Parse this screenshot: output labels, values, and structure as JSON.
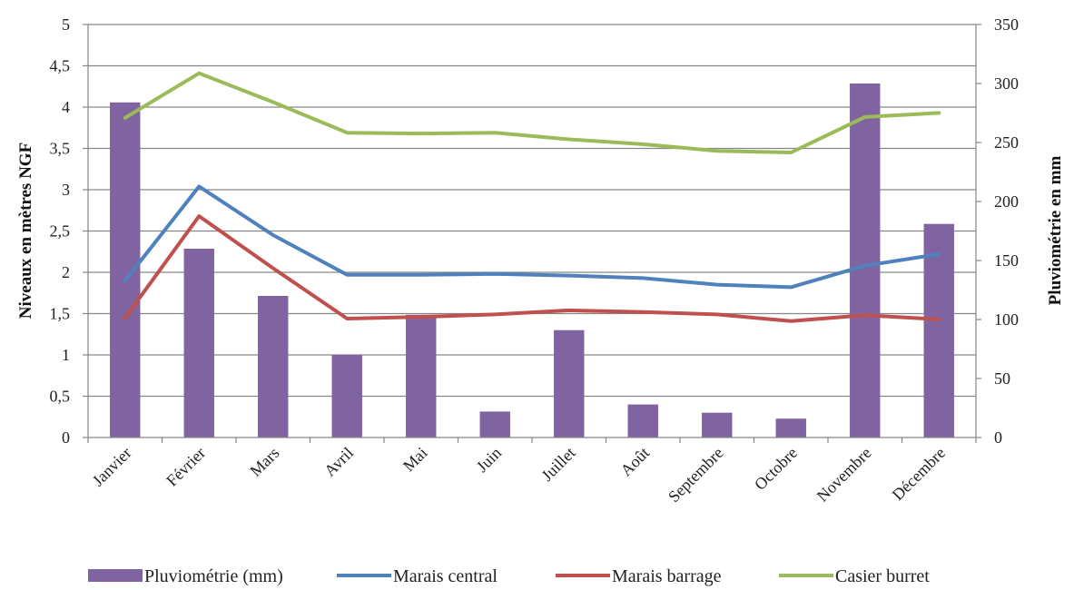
{
  "chart_data": {
    "type": "bar+line",
    "categories": [
      "Janvier",
      "Février",
      "Mars",
      "Avril",
      "Mai",
      "Juin",
      "Juillet",
      "Août",
      "Septembre",
      "Octobre",
      "Novembre",
      "Décembre"
    ],
    "y_left": {
      "label": "Niveaux en mètres NGF",
      "range": [
        0,
        5
      ],
      "ticks": [
        "0",
        "0,5",
        "1",
        "1,5",
        "2",
        "2,5",
        "3",
        "3,5",
        "4",
        "4,5",
        "5"
      ]
    },
    "y_right": {
      "label": "Pluviométrie en mm",
      "range": [
        0,
        350
      ],
      "ticks": [
        "0",
        "50",
        "100",
        "150",
        "200",
        "250",
        "300",
        "350"
      ]
    },
    "grid": true,
    "legend_position": "bottom",
    "series": [
      {
        "name": "Pluviométrie (mm)",
        "kind": "bar",
        "axis": "right",
        "color": "#8064A2",
        "values": [
          284,
          160,
          120,
          70,
          104,
          22,
          91,
          28,
          21,
          16,
          300,
          181
        ]
      },
      {
        "name": "Marais central",
        "kind": "line",
        "axis": "left",
        "color": "#4F81BD",
        "values": [
          1.9,
          3.04,
          2.45,
          1.97,
          1.97,
          1.98,
          1.96,
          1.93,
          1.85,
          1.82,
          2.08,
          2.22
        ]
      },
      {
        "name": "Marais barrage",
        "kind": "line",
        "axis": "left",
        "color": "#C0504D",
        "values": [
          1.45,
          2.68,
          2.05,
          1.44,
          1.46,
          1.49,
          1.54,
          1.52,
          1.49,
          1.41,
          1.48,
          1.43
        ]
      },
      {
        "name": "Casier burret",
        "kind": "line",
        "axis": "left",
        "color": "#9BBB59",
        "values": [
          3.87,
          4.41,
          4.06,
          3.69,
          3.68,
          3.69,
          3.61,
          3.55,
          3.47,
          3.45,
          3.88,
          3.93
        ]
      }
    ]
  }
}
